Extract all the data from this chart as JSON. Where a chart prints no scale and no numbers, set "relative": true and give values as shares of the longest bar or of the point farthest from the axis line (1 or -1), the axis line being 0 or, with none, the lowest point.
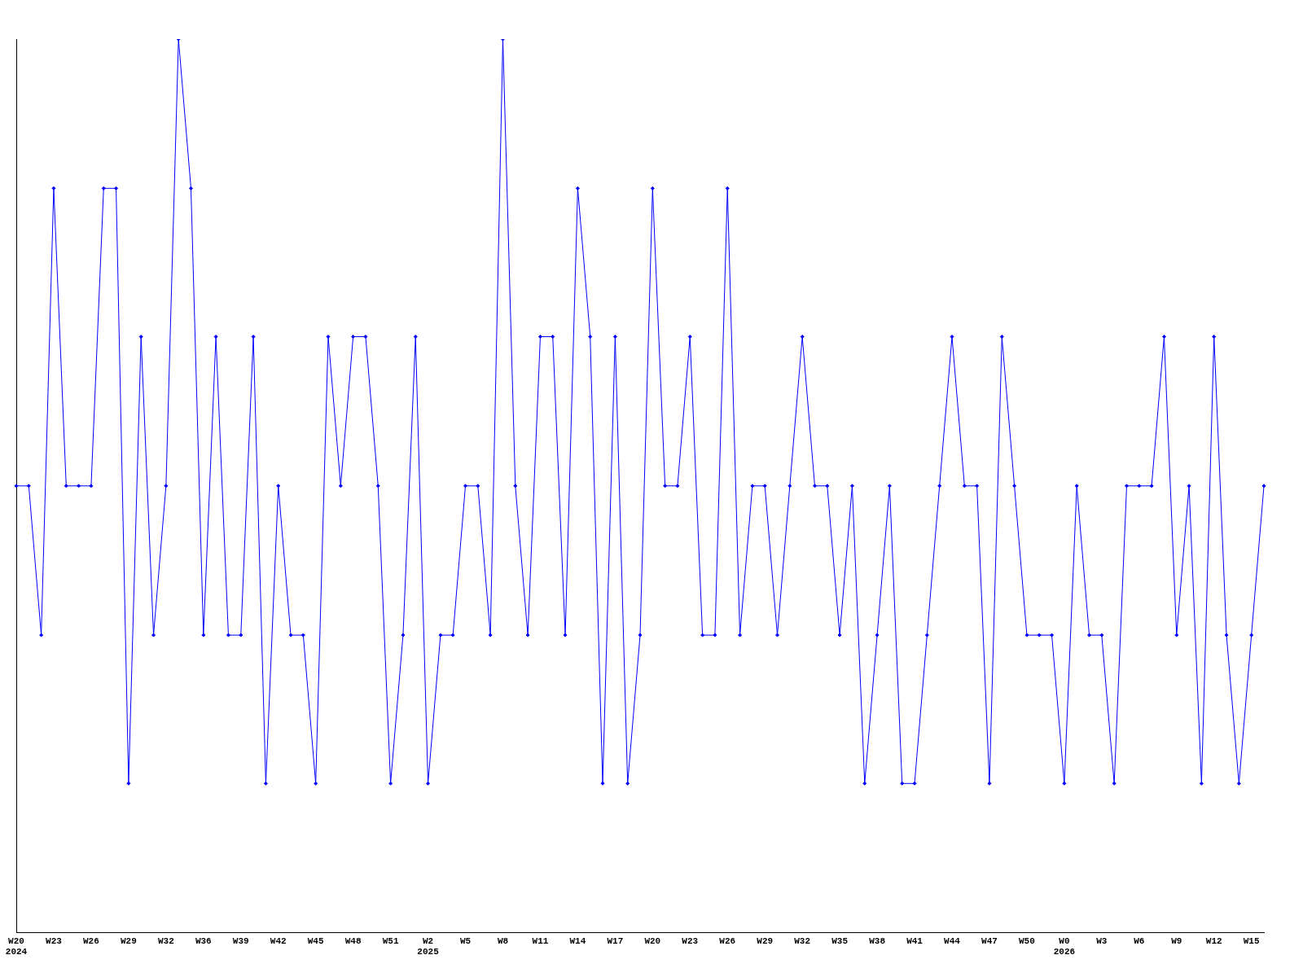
{
  "chart_data": {
    "type": "line",
    "relative": true,
    "marker": "diamond",
    "categories": [
      "W20\n2024",
      null,
      null,
      "W23",
      null,
      null,
      "W26",
      null,
      null,
      "W29",
      null,
      null,
      "W32",
      null,
      null,
      "W36",
      null,
      null,
      "W39",
      null,
      null,
      "W42",
      null,
      null,
      "W45",
      null,
      null,
      "W48",
      null,
      null,
      "W51",
      null,
      null,
      "W2\n2025",
      null,
      null,
      "W5",
      null,
      null,
      "W8",
      null,
      null,
      "W11",
      null,
      null,
      "W14",
      null,
      null,
      "W17",
      null,
      null,
      "W20",
      null,
      null,
      "W23",
      null,
      null,
      "W26",
      null,
      null,
      "W29",
      null,
      null,
      "W32",
      null,
      null,
      "W35",
      null,
      null,
      "W38",
      null,
      null,
      "W41",
      null,
      null,
      "W44",
      null,
      null,
      "W47",
      null,
      null,
      "W50",
      null,
      null,
      "W0\n2026",
      null,
      null,
      "W3",
      null,
      null,
      "W6",
      null,
      null,
      "W9",
      null,
      null,
      "W12",
      null,
      null,
      "W15",
      null
    ],
    "series": [
      {
        "color": "#0000ff",
        "values": [
          0.5,
          0.5,
          0.333,
          0.833,
          0.5,
          0.5,
          0.5,
          0.833,
          0.833,
          0.167,
          0.667,
          0.333,
          0.5,
          1,
          0.833,
          0.333,
          0.667,
          0.333,
          0.333,
          0.667,
          0.167,
          0.5,
          0.333,
          0.333,
          0.167,
          0.667,
          0.5,
          0.667,
          0.667,
          0.5,
          0.167,
          0.333,
          0.667,
          0.167,
          0.333,
          0.333,
          0.5,
          0.5,
          0.333,
          1,
          0.5,
          0.333,
          0.667,
          0.667,
          0.333,
          0.833,
          0.667,
          0.167,
          0.667,
          0.167,
          0.333,
          0.833,
          0.5,
          0.5,
          0.667,
          0.333,
          0.333,
          0.833,
          0.333,
          0.5,
          0.5,
          0.333,
          0.5,
          0.667,
          0.5,
          0.5,
          0.333,
          0.5,
          0.167,
          0.333,
          0.5,
          0.167,
          0.167,
          0.333,
          0.5,
          0.667,
          0.5,
          0.5,
          0.167,
          0.667,
          0.5,
          0.333,
          0.333,
          0.333,
          0.167,
          0.5,
          0.333,
          0.333,
          0.167,
          0.5,
          0.5,
          0.5,
          0.667,
          0.333,
          0.5,
          0.167,
          0.667,
          0.333,
          0.167,
          0.333,
          0.5
        ]
      }
    ]
  }
}
